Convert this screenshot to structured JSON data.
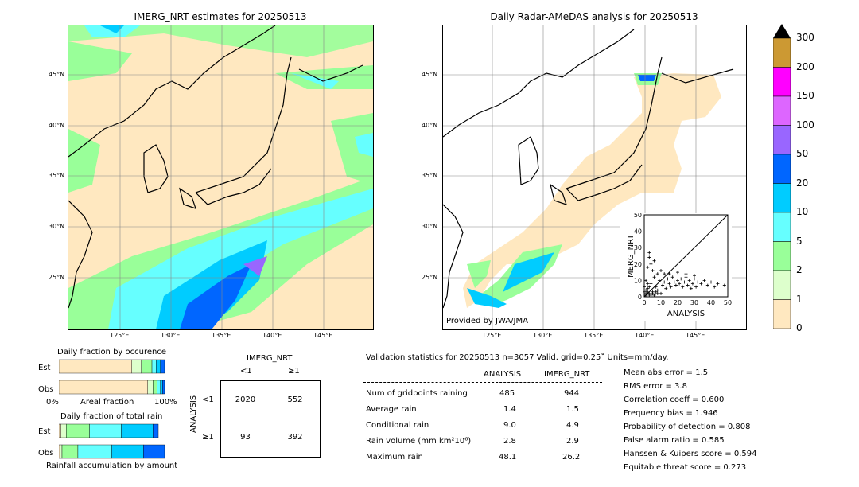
{
  "left_map": {
    "title": "IMERG_NRT estimates for 20250513",
    "lat_labels": [
      "45°N",
      "40°N",
      "35°N",
      "30°N",
      "25°N"
    ],
    "lon_labels": [
      "125°E",
      "130°E",
      "135°E",
      "140°E",
      "145°E"
    ]
  },
  "right_map": {
    "title": "Daily Radar-AMeDAS analysis for 20250513",
    "lat_labels": [
      "45°N",
      "40°N",
      "35°N",
      "30°N",
      "25°N"
    ],
    "lon_labels": [
      "125°E",
      "130°E",
      "135°E",
      "140°E",
      "145°E"
    ],
    "credit": "Provided by JWA/JMA"
  },
  "colorbar": {
    "labels": [
      "300",
      "200",
      "150",
      "100",
      "50",
      "20",
      "10",
      "5",
      "2",
      "1",
      "0"
    ],
    "colors": [
      "#cc9933",
      "#ff00ff",
      "#dd66ff",
      "#9966ff",
      "#0066ff",
      "#00ccff",
      "#66ffff",
      "#99ff99",
      "#ddffcc",
      "#ffe8c0"
    ]
  },
  "chart_data": [
    {
      "type": "scatter",
      "title": "",
      "xlabel": "ANALYSIS",
      "ylabel": "IMERG_NRT",
      "xlim": [
        0,
        50
      ],
      "ylim": [
        0,
        50
      ],
      "x_ticks": [
        "0",
        "10",
        "20",
        "30",
        "40",
        "50"
      ],
      "y_ticks": [
        "0",
        "10",
        "20",
        "30",
        "40",
        "50"
      ],
      "points": [
        [
          1,
          2
        ],
        [
          2,
          5
        ],
        [
          3,
          1
        ],
        [
          4,
          8
        ],
        [
          5,
          3
        ],
        [
          6,
          12
        ],
        [
          7,
          6
        ],
        [
          8,
          4
        ],
        [
          9,
          10
        ],
        [
          10,
          2
        ],
        [
          11,
          7
        ],
        [
          12,
          9
        ],
        [
          13,
          5
        ],
        [
          14,
          11
        ],
        [
          15,
          8
        ],
        [
          16,
          6
        ],
        [
          17,
          12
        ],
        [
          18,
          9
        ],
        [
          19,
          7
        ],
        [
          20,
          10
        ],
        [
          21,
          8
        ],
        [
          22,
          11
        ],
        [
          23,
          6
        ],
        [
          24,
          9
        ],
        [
          25,
          12
        ],
        [
          26,
          7
        ],
        [
          27,
          10
        ],
        [
          28,
          5
        ],
        [
          29,
          8
        ],
        [
          30,
          11
        ],
        [
          31,
          6
        ],
        [
          32,
          9
        ],
        [
          34,
          8
        ],
        [
          36,
          10
        ],
        [
          38,
          7
        ],
        [
          40,
          9
        ],
        [
          42,
          6
        ],
        [
          44,
          8
        ],
        [
          48,
          7
        ],
        [
          2,
          18
        ],
        [
          3,
          24
        ],
        [
          4,
          20
        ],
        [
          5,
          16
        ],
        [
          6,
          22
        ],
        [
          8,
          14
        ],
        [
          10,
          16
        ],
        [
          3,
          27
        ],
        [
          12,
          14
        ],
        [
          15,
          14
        ],
        [
          20,
          15
        ],
        [
          25,
          14
        ],
        [
          30,
          13
        ],
        [
          1,
          10
        ],
        [
          2,
          8
        ],
        [
          3,
          6
        ],
        [
          1,
          4
        ],
        [
          2,
          3
        ],
        [
          3,
          2
        ],
        [
          4,
          1
        ],
        [
          5,
          2
        ],
        [
          6,
          1
        ],
        [
          7,
          3
        ],
        [
          8,
          2
        ],
        [
          1,
          1
        ],
        [
          0,
          3
        ],
        [
          0,
          6
        ]
      ]
    },
    {
      "type": "bar",
      "title": "Daily fraction by occurence",
      "categories": [
        "Est",
        "Obs"
      ],
      "xlabel": "Areal fraction",
      "x_ticks": [
        "0%",
        "100%"
      ],
      "series": [
        {
          "values": [
            0.69,
            0.84
          ]
        },
        {
          "values": [
            0.09,
            0.05
          ]
        },
        {
          "values": [
            0.1,
            0.04
          ]
        },
        {
          "values": [
            0.04,
            0.03
          ]
        },
        {
          "values": [
            0.04,
            0.02
          ]
        },
        {
          "values": [
            0.04,
            0.02
          ]
        }
      ],
      "segment_colors": [
        "#ffe8c0",
        "#ddffcc",
        "#99ff99",
        "#66ffff",
        "#00ccff",
        "#0066ff"
      ]
    },
    {
      "type": "bar",
      "title": "Daily fraction of total rain",
      "categories": [
        "Est",
        "Obs"
      ],
      "xlabel": "Rainfall accumulation by amount",
      "series": [
        {
          "values": [
            0.02,
            0.01
          ]
        },
        {
          "values": [
            0.05,
            0.02
          ]
        },
        {
          "values": [
            0.22,
            0.15
          ]
        },
        {
          "values": [
            0.3,
            0.32
          ]
        },
        {
          "values": [
            0.3,
            0.3
          ]
        },
        {
          "values": [
            0.05,
            0.2
          ]
        }
      ],
      "segment_colors": [
        "#ffe8c0",
        "#ddffcc",
        "#99ff99",
        "#66ffff",
        "#00ccff",
        "#0066ff"
      ]
    },
    {
      "type": "table",
      "title": "IMERG_NRT",
      "col_headers": [
        "<1",
        "≥1"
      ],
      "row_title": "ANALYSIS",
      "row_headers": [
        "<1",
        "≥1"
      ],
      "cells": [
        [
          "2020",
          "552"
        ],
        [
          "93",
          "392"
        ]
      ]
    }
  ],
  "stats": {
    "header": "Validation statistics for 20250513  n=3057 Valid. grid=0.25˚ Units=mm/day.",
    "col_analysis": "ANALYSIS",
    "col_imerg": "IMERG_NRT",
    "rows": [
      {
        "label": "Num of gridpoints raining",
        "a": "485",
        "b": "944"
      },
      {
        "label": "Average rain",
        "a": "1.4",
        "b": "1.5"
      },
      {
        "label": "Conditional rain",
        "a": "9.0",
        "b": "4.9"
      },
      {
        "label": "Rain volume (mm km²10⁶)",
        "a": "2.8",
        "b": "2.9"
      },
      {
        "label": "Maximum rain",
        "a": "48.1",
        "b": "26.2"
      }
    ],
    "right": [
      "Mean abs error =    1.5",
      "RMS error =    3.8",
      "Correlation coeff =  0.600",
      "Frequency bias =  1.946",
      "Probability of detection =  0.808",
      "False alarm ratio =  0.585",
      "Hanssen & Kuipers score =  0.594",
      "Equitable threat score =  0.273"
    ]
  }
}
